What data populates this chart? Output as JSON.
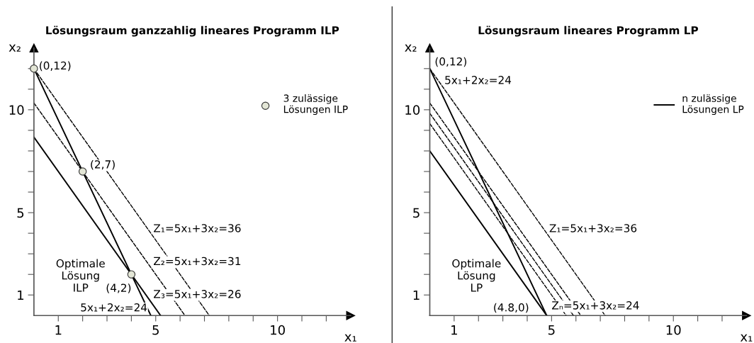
{
  "chart_data": [
    {
      "type": "line",
      "title": "Lösungsraum ganzzahlig lineares Programm ILP",
      "xlabel": "x₁",
      "ylabel": "x₂",
      "xlim": [
        0,
        13
      ],
      "ylim": [
        0,
        13
      ],
      "xticks": [
        1,
        {
          "value": 2,
          "label": null
        },
        {
          "value": 3,
          "label": null
        },
        {
          "value": 4,
          "label": null
        },
        5,
        {
          "value": 6,
          "label": null
        },
        {
          "value": 7,
          "label": null
        },
        {
          "value": 8,
          "label": null
        },
        {
          "value": 9,
          "label": null
        },
        10,
        {
          "value": 11,
          "label": null
        },
        {
          "value": 12,
          "label": null
        }
      ],
      "yticks": [
        1,
        {
          "value": 2,
          "label": null
        },
        {
          "value": 3,
          "label": null
        },
        {
          "value": 4,
          "label": null
        },
        5,
        {
          "value": 6,
          "label": null
        },
        {
          "value": 7,
          "label": null
        },
        {
          "value": 8,
          "label": null
        },
        {
          "value": 9,
          "label": null
        },
        10,
        {
          "value": 11,
          "label": null
        },
        {
          "value": 12,
          "label": null
        }
      ],
      "grid": false,
      "legend": "top right",
      "series": [
        {
          "color": "#000000",
          "line_style": "solid",
          "x": [
            0,
            4.8
          ],
          "values": [
            12,
            0
          ]
        },
        {
          "color": "#000000",
          "line_style": "dashed",
          "x": [
            0,
            7.2
          ],
          "values": [
            12,
            0
          ]
        },
        {
          "color": "#000000",
          "line_style": "dashed",
          "x": [
            0,
            6.2
          ],
          "values": [
            10.33,
            0
          ]
        },
        {
          "color": "#000000",
          "line_style": "solid",
          "x": [
            0,
            5.2
          ],
          "values": [
            8.67,
            0
          ]
        },
        {
          "type": "scatter",
          "name": "3 zulässige\nLösungen ILP",
          "color": "#e3e6d6",
          "marker": "circle",
          "x": [
            0,
            2,
            4
          ],
          "values": [
            12,
            7,
            2
          ]
        }
      ],
      "annotations": [
        "(0,12)",
        "(2,7)",
        "(4,2)",
        "Optimale\nLösung\nILP",
        "Z₁=5x₁+3x₂=36",
        "Z₂=5x₁+3x₂=31",
        "Z₃=5x₁+3x₂=26",
        "5x₁+2x₂=24"
      ]
    },
    {
      "type": "line",
      "title": "Lösungsraum lineares Programm LP",
      "xlabel": "x₁",
      "ylabel": "x₂",
      "xlim": [
        0,
        13
      ],
      "ylim": [
        0,
        13
      ],
      "xticks": [
        1,
        {
          "value": 2,
          "label": null
        },
        {
          "value": 3,
          "label": null
        },
        {
          "value": 4,
          "label": null
        },
        5,
        {
          "value": 6,
          "label": null
        },
        {
          "value": 7,
          "label": null
        },
        {
          "value": 8,
          "label": null
        },
        {
          "value": 9,
          "label": null
        },
        10,
        {
          "value": 11,
          "label": null
        },
        {
          "value": 12,
          "label": null
        }
      ],
      "yticks": [
        1,
        {
          "value": 2,
          "label": null
        },
        {
          "value": 3,
          "label": null
        },
        {
          "value": 4,
          "label": null
        },
        5,
        {
          "value": 6,
          "label": null
        },
        {
          "value": 7,
          "label": null
        },
        {
          "value": 8,
          "label": null
        },
        {
          "value": 9,
          "label": null
        },
        10,
        {
          "value": 11,
          "label": null
        },
        {
          "value": 12,
          "label": null
        }
      ],
      "grid": false,
      "legend": "top right",
      "series": [
        {
          "name": "n zulässige\nLösungen LP",
          "color": "#000000",
          "line_style": "solid",
          "x": [
            0,
            4.8
          ],
          "values": [
            12,
            0
          ]
        },
        {
          "color": "#000000",
          "line_style": "dashed",
          "x": [
            0,
            7.2
          ],
          "values": [
            12,
            0
          ]
        },
        {
          "color": "#000000",
          "line_style": "dashed",
          "x": [
            0,
            6.2
          ],
          "values": [
            10.33,
            0
          ]
        },
        {
          "color": "#000000",
          "line_style": "dashed",
          "x": [
            0,
            5.9
          ],
          "values": [
            9.83,
            0
          ]
        },
        {
          "color": "#000000",
          "line_style": "dashed",
          "x": [
            0,
            5.6
          ],
          "values": [
            9.33,
            0
          ]
        },
        {
          "color": "#000000",
          "line_style": "solid",
          "x": [
            0,
            4.8
          ],
          "values": [
            8,
            0
          ]
        }
      ],
      "annotations": [
        "(0,12)",
        "5x₁+2x₂=24",
        "Optimale\nLösung\nLP",
        "Z₁=5x₁+3x₂=36",
        "(4.8,0)",
        "Zₙ=5x₁+3x₂=24"
      ]
    }
  ]
}
